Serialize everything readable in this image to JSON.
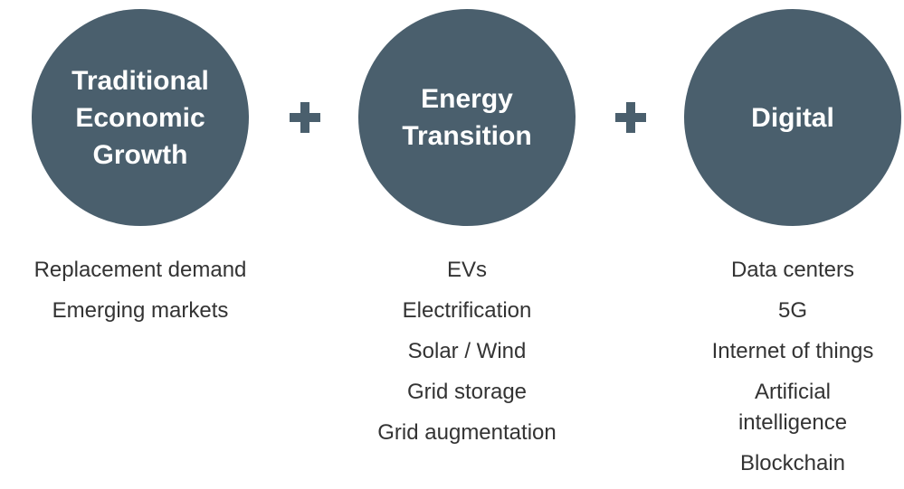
{
  "columns": [
    {
      "title": [
        "Traditional",
        "Economic",
        "Growth"
      ],
      "items": [
        [
          "Replacement demand"
        ],
        [
          "Emerging markets"
        ]
      ]
    },
    {
      "title": [
        "Energy",
        "Transition"
      ],
      "items": [
        [
          "EVs"
        ],
        [
          "Electrification"
        ],
        [
          "Solar / Wind"
        ],
        [
          "Grid storage"
        ],
        [
          "Grid augmentation"
        ]
      ]
    },
    {
      "title": [
        "Digital"
      ],
      "items": [
        [
          "Data centers"
        ],
        [
          "5G"
        ],
        [
          "Internet of things"
        ],
        [
          "Artificial",
          "intelligence"
        ],
        [
          "Blockchain"
        ]
      ]
    }
  ]
}
